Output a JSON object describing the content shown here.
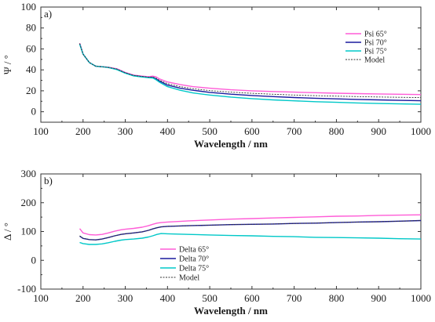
{
  "chart_data": [
    {
      "type": "line",
      "panel_label": "a)",
      "xlabel": "Wavelength / nm",
      "ylabel": "Ψ / °",
      "xlim": [
        100,
        1000
      ],
      "ylim": [
        -10,
        100
      ],
      "xticks": [
        100,
        200,
        300,
        400,
        500,
        600,
        700,
        800,
        900,
        1000
      ],
      "yticks": [
        0,
        20,
        40,
        60,
        80,
        100
      ],
      "grid": false,
      "legend_position": "top-right",
      "series": [
        {
          "name": "Psi 65°",
          "color": "#ff5cd7",
          "x": [
            192,
            200,
            215,
            230,
            245,
            260,
            280,
            300,
            320,
            340,
            355,
            365,
            372,
            380,
            400,
            430,
            460,
            500,
            550,
            600,
            650,
            700,
            750,
            800,
            850,
            900,
            950,
            1000
          ],
          "y": [
            65.5,
            55,
            47,
            43.5,
            43,
            42.5,
            41,
            37.5,
            35,
            34,
            33.5,
            34,
            33.5,
            31.5,
            28.5,
            26,
            24,
            22.5,
            21,
            20,
            19.3,
            18.7,
            18.2,
            17.7,
            17.3,
            17,
            16.7,
            16.4
          ]
        },
        {
          "name": "Psi 70°",
          "color": "#1a1a9e",
          "x": [
            192,
            200,
            215,
            230,
            245,
            260,
            280,
            300,
            320,
            340,
            355,
            365,
            372,
            380,
            400,
            430,
            460,
            500,
            550,
            600,
            650,
            700,
            750,
            800,
            850,
            900,
            950,
            1000
          ],
          "y": [
            65,
            55,
            47,
            43.5,
            43,
            42.3,
            40.5,
            37,
            34.5,
            33.5,
            32.8,
            32.8,
            31.5,
            29.5,
            25.5,
            22.5,
            20.5,
            18.5,
            16.8,
            15.5,
            14.5,
            13.6,
            12.9,
            12.3,
            11.8,
            11.3,
            10.9,
            10.5
          ]
        },
        {
          "name": "Psi 75°",
          "color": "#00c8c8",
          "x": [
            192,
            200,
            215,
            230,
            245,
            260,
            280,
            300,
            320,
            340,
            355,
            365,
            372,
            380,
            400,
            430,
            460,
            500,
            550,
            600,
            650,
            700,
            750,
            800,
            850,
            900,
            950,
            1000
          ],
          "y": [
            64.5,
            55,
            47,
            43.5,
            43,
            42.2,
            40.3,
            36.8,
            34.2,
            33.2,
            32.5,
            32.3,
            30.8,
            28.5,
            24,
            20.5,
            18,
            16,
            14,
            12.5,
            11.3,
            10.4,
            9.6,
            9,
            8.4,
            7.9,
            7.5,
            7.1
          ]
        },
        {
          "name": "Model",
          "color": "#333333",
          "dashed": true,
          "x": [
            192,
            200,
            215,
            230,
            245,
            260,
            280,
            300,
            320,
            340,
            355,
            365,
            372,
            380,
            400,
            430,
            460,
            500,
            550,
            600,
            650,
            700,
            750,
            800,
            850,
            900,
            950,
            1000
          ],
          "y": [
            65.2,
            55,
            47,
            43.5,
            43,
            42.4,
            40.8,
            37.2,
            34.7,
            33.7,
            33.1,
            33.2,
            32.3,
            30.3,
            26.8,
            24,
            22,
            20.2,
            18.7,
            17.6,
            16.7,
            16,
            15.4,
            14.9,
            14.5,
            14.1,
            13.8,
            13.5
          ]
        }
      ]
    },
    {
      "type": "line",
      "panel_label": "b)",
      "xlabel": "Wavelength / nm",
      "ylabel": "Δ / °",
      "xlim": [
        100,
        1000
      ],
      "ylim": [
        -100,
        300
      ],
      "xticks": [
        100,
        200,
        300,
        400,
        500,
        600,
        700,
        800,
        900,
        1000
      ],
      "yticks": [
        -100,
        0,
        100,
        200,
        300
      ],
      "grid": false,
      "legend_position": "bottom-left",
      "series": [
        {
          "name": "Delta 65°",
          "color": "#ff5cd7",
          "x": [
            192,
            200,
            215,
            230,
            245,
            260,
            275,
            290,
            300,
            320,
            340,
            355,
            365,
            375,
            385,
            400,
            450,
            500,
            550,
            600,
            650,
            700,
            750,
            800,
            850,
            900,
            950,
            1000
          ],
          "y": [
            110,
            95,
            89,
            88,
            90,
            95,
            101,
            106,
            108,
            111,
            115,
            120,
            125,
            129,
            131,
            133,
            137,
            140,
            143,
            145,
            147,
            149,
            151,
            153,
            154,
            156,
            157,
            158
          ]
        },
        {
          "name": "Delta 70°",
          "color": "#1a1a9e",
          "x": [
            192,
            200,
            215,
            230,
            245,
            260,
            275,
            290,
            300,
            320,
            340,
            355,
            365,
            375,
            385,
            400,
            450,
            500,
            550,
            600,
            650,
            700,
            750,
            800,
            850,
            900,
            950,
            1000
          ],
          "y": [
            84,
            76,
            72,
            71,
            74,
            79,
            85,
            90,
            92,
            95,
            99,
            104,
            109,
            113,
            116,
            118,
            120,
            122,
            124,
            125,
            126,
            128,
            129,
            131,
            133,
            134,
            136,
            138
          ]
        },
        {
          "name": "Delta 75°",
          "color": "#00c8c8",
          "x": [
            192,
            200,
            215,
            230,
            245,
            260,
            275,
            290,
            300,
            320,
            340,
            355,
            365,
            375,
            385,
            400,
            450,
            500,
            550,
            600,
            650,
            700,
            750,
            800,
            850,
            900,
            950,
            1000
          ],
          "y": [
            62,
            58,
            55,
            55,
            57,
            61,
            66,
            70,
            72,
            74,
            77,
            81,
            85,
            90,
            93,
            92,
            90,
            88,
            86,
            85,
            83,
            82,
            80,
            79,
            78,
            77,
            75,
            74
          ]
        },
        {
          "name": "Model",
          "color": "#333333",
          "dashed": true,
          "x": [
            192,
            200,
            215,
            230,
            245,
            260,
            275,
            290,
            300,
            320,
            340,
            355,
            365,
            375,
            385,
            400,
            450,
            500,
            550,
            600,
            650,
            700,
            750,
            800,
            850,
            900,
            950,
            1000
          ],
          "y": [
            85,
            77,
            72,
            71,
            74,
            79,
            85,
            90,
            92,
            95,
            99,
            104,
            109,
            113,
            116,
            118,
            120,
            122,
            124,
            125,
            126,
            128,
            129,
            131,
            133,
            134,
            136,
            138
          ]
        }
      ]
    }
  ]
}
